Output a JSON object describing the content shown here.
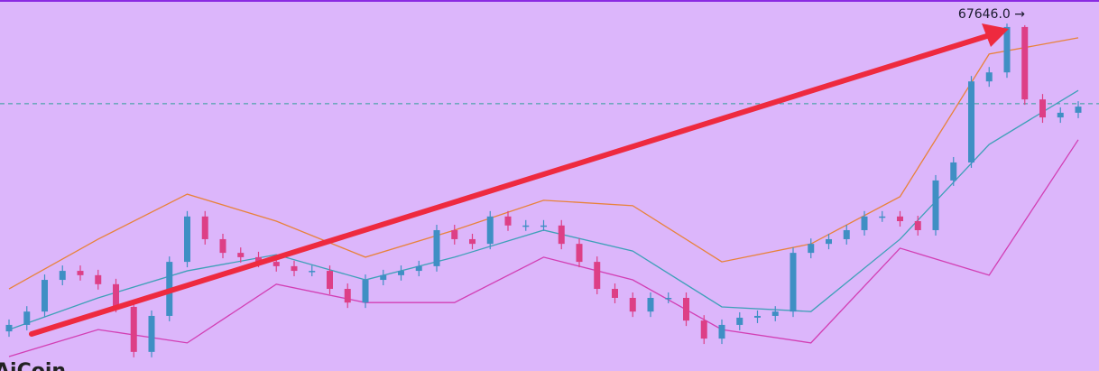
{
  "chart_data": {
    "type": "candlestick",
    "ylim": [
      58000,
      68300
    ],
    "open": [
      59100,
      59280,
      59650,
      60530,
      60780,
      60660,
      60410,
      59780,
      58530,
      59530,
      61030,
      62290,
      61660,
      61280,
      61160,
      61030,
      60910,
      60780,
      60780,
      60280,
      59900,
      60530,
      60660,
      60780,
      60910,
      61910,
      61660,
      61530,
      62290,
      62040,
      62040,
      62040,
      61530,
      61030,
      60280,
      60030,
      59650,
      60030,
      60030,
      59400,
      58900,
      59280,
      59480,
      59530,
      59650,
      61280,
      61530,
      61660,
      61910,
      62290,
      62290,
      62160,
      61910,
      63290,
      63790,
      66040,
      66290,
      67550,
      65540,
      65040,
      65170
    ],
    "high": [
      59430,
      59800,
      60680,
      60930,
      60930,
      60810,
      60560,
      59930,
      59680,
      61180,
      62440,
      62440,
      61810,
      61430,
      61310,
      61180,
      61060,
      60930,
      60930,
      60430,
      60680,
      60810,
      60930,
      61060,
      62060,
      62060,
      61810,
      62440,
      62440,
      62190,
      62190,
      62190,
      61680,
      61180,
      60430,
      60180,
      60180,
      60180,
      60180,
      59550,
      59430,
      59630,
      59680,
      59800,
      61430,
      61680,
      61810,
      62060,
      62440,
      62440,
      62440,
      62310,
      63440,
      63940,
      66190,
      66440,
      67646,
      67600,
      65690,
      65320,
      65490
    ],
    "low": [
      58950,
      59130,
      59500,
      60380,
      60510,
      60260,
      59630,
      58380,
      58380,
      59380,
      60880,
      61510,
      61130,
      61010,
      60880,
      60760,
      60630,
      60630,
      60130,
      59750,
      59750,
      60380,
      60510,
      60630,
      60760,
      61510,
      61380,
      61380,
      61890,
      61890,
      61890,
      61380,
      60880,
      60130,
      59880,
      59500,
      59500,
      59880,
      59250,
      58750,
      58750,
      59130,
      59330,
      59380,
      59500,
      61130,
      61380,
      61510,
      61760,
      62140,
      62010,
      61760,
      61760,
      63140,
      63640,
      65890,
      66140,
      65390,
      64890,
      64890,
      65020
    ],
    "close": [
      59280,
      59650,
      60530,
      60780,
      60660,
      60410,
      59780,
      58530,
      59530,
      61030,
      62290,
      61660,
      61280,
      61160,
      61030,
      60910,
      60780,
      60780,
      60280,
      59900,
      60530,
      60660,
      60780,
      60910,
      61910,
      61660,
      61530,
      62290,
      62040,
      62040,
      62040,
      61530,
      61030,
      60280,
      60030,
      59650,
      60030,
      60030,
      59400,
      58900,
      59280,
      59480,
      59530,
      59650,
      61280,
      61530,
      61660,
      61910,
      62290,
      62290,
      62160,
      61910,
      63290,
      63790,
      66040,
      66290,
      67550,
      65540,
      65040,
      65170,
      65340
    ],
    "up_color": "#3f8fc4",
    "down_color": "#dd3f86",
    "bands": [
      {
        "color": "#e8823a",
        "x": [
          0,
          5,
          10,
          15,
          20,
          25,
          30,
          35,
          40,
          45,
          50,
          55,
          60
        ],
        "values": [
          60280,
          61660,
          62910,
          62160,
          61160,
          61910,
          62740,
          62590,
          61030,
          61530,
          62840,
          66800,
          67250
        ]
      },
      {
        "color": "#3ea0b8",
        "x": [
          0,
          5,
          10,
          15,
          20,
          25,
          30,
          35,
          40,
          45,
          50,
          55,
          60
        ],
        "values": [
          59150,
          60030,
          60780,
          61230,
          60530,
          61160,
          61910,
          61330,
          59780,
          59650,
          61660,
          64290,
          65790
        ]
      },
      {
        "color": "#d23fb4",
        "x": [
          0,
          5,
          10,
          15,
          20,
          25,
          30,
          35,
          40,
          45,
          50,
          55,
          60
        ],
        "values": [
          58400,
          59150,
          58780,
          60410,
          59900,
          59900,
          61160,
          60530,
          59150,
          58780,
          61410,
          60660,
          64420
        ]
      }
    ],
    "hline": {
      "value": 65420,
      "color": "#2f9f98"
    },
    "max_label": {
      "value": 67646,
      "label": "67646.0 →"
    },
    "watermark": "AiCoin"
  }
}
